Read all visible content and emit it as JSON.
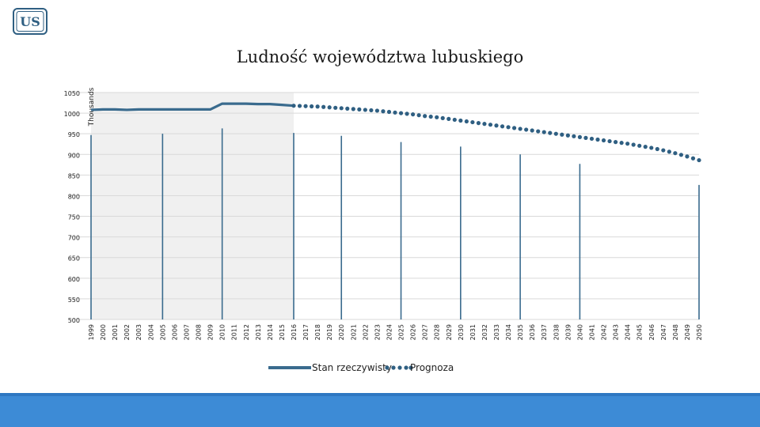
{
  "colors": {
    "actual": "#3a6b8e",
    "forecast": "#2f5f82",
    "shade": "#f0f0f0",
    "grid": "#d9d9d9",
    "stem": "#3a6b8e",
    "footer": "#3d8bd6"
  },
  "logo_icon": "us-logo-icon",
  "chart_data": {
    "type": "line",
    "title": "Ludność województwa lubuskiego",
    "ylabel": "Thousands",
    "xlabel": "",
    "ylim": [
      500,
      1050
    ],
    "yticks": [
      500,
      550,
      600,
      650,
      700,
      750,
      800,
      850,
      900,
      950,
      1000,
      1050
    ],
    "grid": true,
    "legend_position": "bottom",
    "shaded_range": [
      "1999",
      "2016"
    ],
    "categories": [
      "1999",
      "2000",
      "2001",
      "2002",
      "2003",
      "2004",
      "2005",
      "2006",
      "2007",
      "2008",
      "2009",
      "2010",
      "2011",
      "2012",
      "2013",
      "2014",
      "2015",
      "2016",
      "2017",
      "2018",
      "2019",
      "2020",
      "2021",
      "2022",
      "2023",
      "2024",
      "2025",
      "2026",
      "2027",
      "2028",
      "2029",
      "2030",
      "2031",
      "2032",
      "2033",
      "2034",
      "2035",
      "2036",
      "2037",
      "2038",
      "2039",
      "2040",
      "2041",
      "2042",
      "2043",
      "2044",
      "2045",
      "2046",
      "2047",
      "2048",
      "2049",
      "2050"
    ],
    "series": [
      {
        "name": "Stan rzeczywisty",
        "style": "solid",
        "values": [
          1008,
          1009,
          1009,
          1008,
          1009,
          1009,
          1009,
          1009,
          1009,
          1009,
          1009,
          1023,
          1023,
          1023,
          1022,
          1022,
          1020,
          1018,
          null,
          null,
          null,
          null,
          null,
          null,
          null,
          null,
          null,
          null,
          null,
          null,
          null,
          null,
          null,
          null,
          null,
          null,
          null,
          null,
          null,
          null,
          null,
          null,
          null,
          null,
          null,
          null,
          null,
          null,
          null,
          null,
          null,
          null
        ]
      },
      {
        "name": "Prognoza",
        "style": "dotted",
        "values": [
          null,
          null,
          null,
          null,
          null,
          null,
          null,
          null,
          null,
          null,
          null,
          null,
          null,
          null,
          null,
          null,
          null,
          1018,
          1017,
          1016,
          1014,
          1012,
          1010,
          1008,
          1006,
          1003,
          1000,
          997,
          993,
          990,
          986,
          982,
          978,
          974,
          970,
          966,
          962,
          958,
          954,
          950,
          946,
          942,
          938,
          934,
          930,
          926,
          921,
          916,
          910,
          903,
          895,
          886
        ]
      }
    ],
    "stems": [
      {
        "x": "1999",
        "value": 947
      },
      {
        "x": "2005",
        "value": 950
      },
      {
        "x": "2010",
        "value": 963
      },
      {
        "x": "2016",
        "value": 952
      },
      {
        "x": "2020",
        "value": 945
      },
      {
        "x": "2025",
        "value": 930
      },
      {
        "x": "2030",
        "value": 919
      },
      {
        "x": "2035",
        "value": 900
      },
      {
        "x": "2040",
        "value": 877
      },
      {
        "x": "2050",
        "value": 826
      }
    ]
  }
}
